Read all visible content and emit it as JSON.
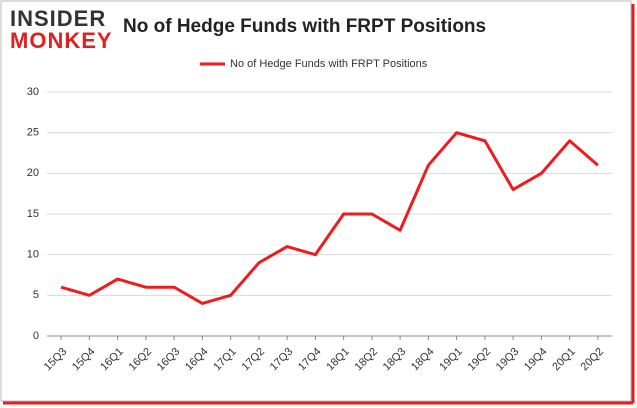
{
  "logo": [
    "INSIDER",
    "MONKEY"
  ],
  "chart_data": {
    "type": "line",
    "title": "No of Hedge Funds with FRPT Positions",
    "categories": [
      "15Q3",
      "15Q4",
      "16Q1",
      "16Q2",
      "16Q3",
      "16Q4",
      "17Q1",
      "17Q2",
      "17Q3",
      "17Q4",
      "18Q1",
      "18Q2",
      "18Q3",
      "18Q4",
      "19Q1",
      "19Q2",
      "19Q3",
      "19Q4",
      "20Q1",
      "20Q2"
    ],
    "series": [
      {
        "name": "No of Hedge Funds with FRPT Positions",
        "color": "#ee1c1c",
        "values": [
          6,
          5,
          7,
          6,
          6,
          4,
          5,
          9,
          11,
          10,
          15,
          15,
          13,
          21,
          25,
          24,
          18,
          20,
          24,
          21
        ]
      }
    ],
    "ylim": [
      0,
      30
    ],
    "yticks": [
      0,
      5,
      10,
      15,
      20,
      25,
      30
    ],
    "grid": true,
    "legend": "top"
  }
}
